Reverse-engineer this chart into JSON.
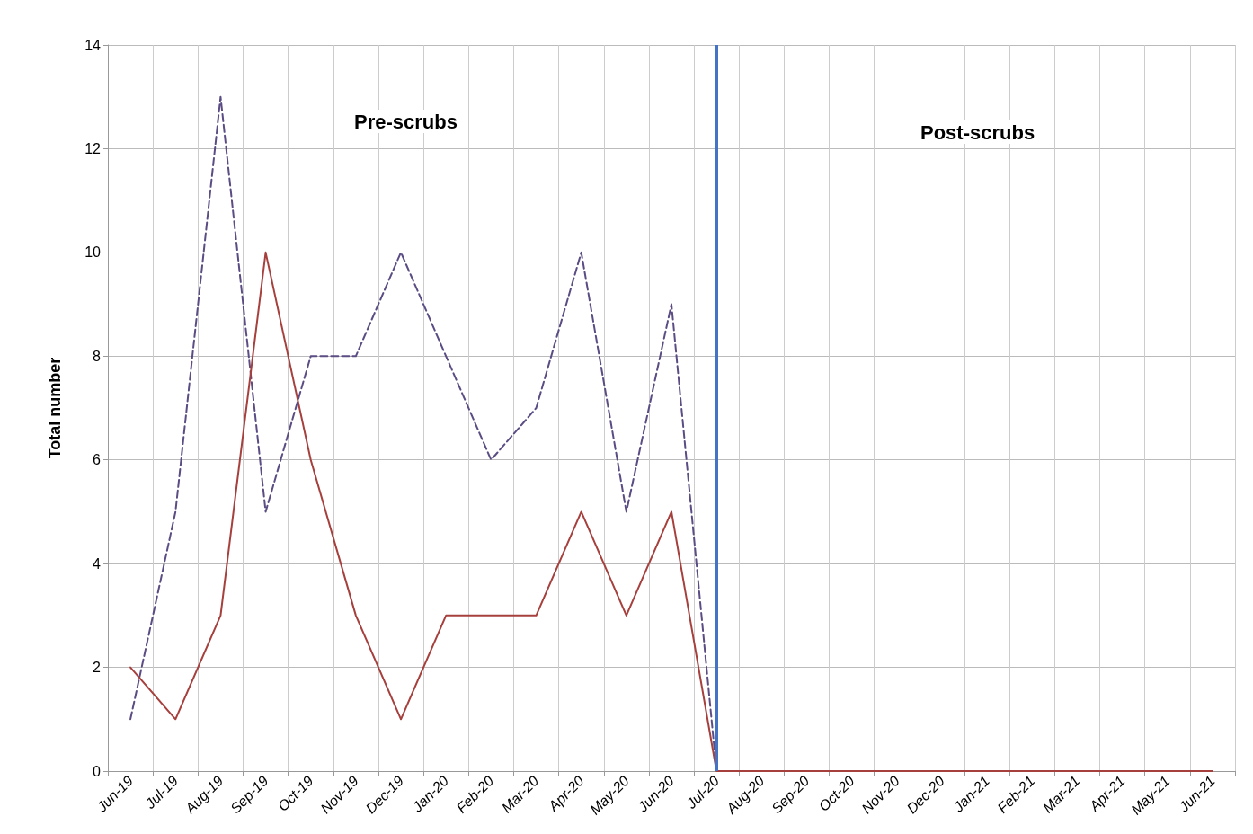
{
  "chart_data": {
    "type": "line",
    "ylabel": "Total number",
    "categories": [
      "Jun-19",
      "Jul-19",
      "Aug-19",
      "Sep-19",
      "Oct-19",
      "Nov-19",
      "Dec-19",
      "Jan-20",
      "Feb-20",
      "Mar-20",
      "Apr-20",
      "May-20",
      "Jun-20",
      "Jul-20",
      "Aug-20",
      "Sep-20",
      "Oct-20",
      "Nov-20",
      "Dec-20",
      "Jan-21",
      "Feb-21",
      "Mar-21",
      "Apr-21",
      "May-21",
      "Jun-21"
    ],
    "series": [
      {
        "color": "#5b4d84",
        "line_style": "dashed",
        "values": [
          1,
          5,
          13,
          5,
          8,
          8,
          10,
          8,
          6,
          7,
          10,
          5,
          9,
          0,
          0,
          0,
          0,
          0,
          0,
          0,
          0,
          0,
          0,
          0,
          0
        ]
      },
      {
        "color": "#a6403d",
        "line_style": "solid",
        "values": [
          2,
          1,
          3,
          10,
          6,
          3,
          1,
          3,
          3,
          3,
          5,
          3,
          5,
          0,
          0,
          0,
          0,
          0,
          0,
          0,
          0,
          0,
          0,
          0,
          0
        ]
      }
    ],
    "ylim": [
      0,
      14
    ],
    "yticks": [
      0,
      2,
      4,
      6,
      8,
      10,
      12,
      14
    ],
    "grid": true,
    "marker": "none",
    "ref_lines": [
      {
        "axis": "x",
        "value": "Jul-20",
        "color": "#4472c4"
      }
    ],
    "annotations": [
      "Pre-scrubs",
      "Post-scrubs"
    ]
  }
}
